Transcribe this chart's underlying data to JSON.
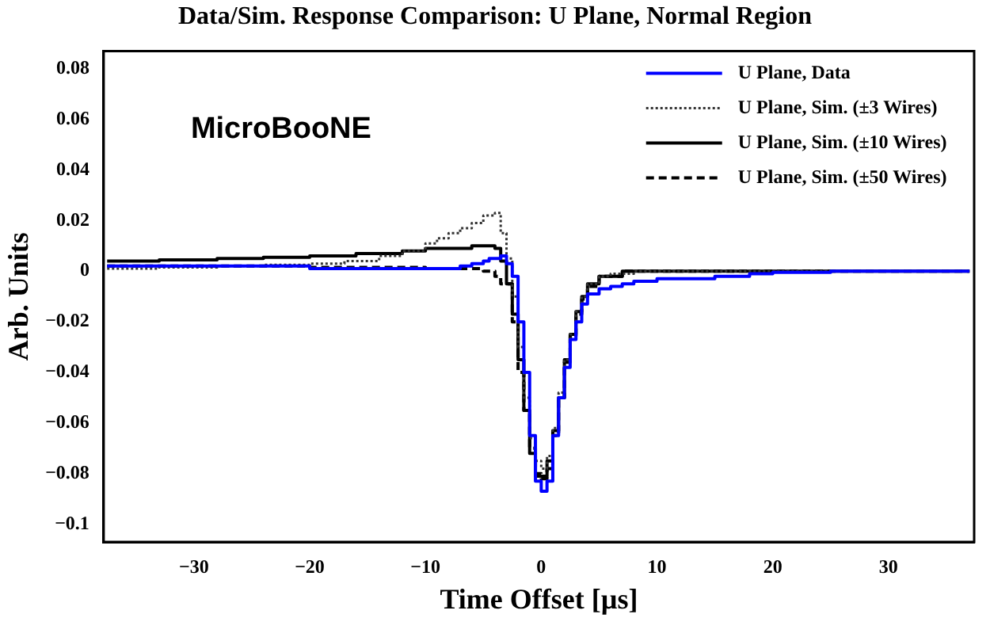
{
  "chart_data": {
    "type": "step",
    "title": "Data/Sim. Response Comparison:  U Plane, Normal Region",
    "xlabel": "Time Offset [µs]",
    "ylabel": "Arb. Units",
    "annotations": [
      "MicroBooNE"
    ],
    "xlim": [
      -37.8,
      37.4
    ],
    "xticks": [
      {
        "value": -30,
        "label": "−30"
      },
      {
        "value": -20,
        "label": "−20"
      },
      {
        "value": -10,
        "label": "−10"
      },
      0,
      10,
      20,
      30
    ],
    "ylim": [
      -0.107,
      0.087
    ],
    "yticks": [
      {
        "value": -0.1,
        "label": "−0.1"
      },
      {
        "value": -0.08,
        "label": "−0.08"
      },
      {
        "value": -0.06,
        "label": "−0.06"
      },
      {
        "value": -0.04,
        "label": "−0.04"
      },
      {
        "value": -0.02,
        "label": "−0.02"
      },
      0,
      0.02,
      0.04,
      0.06,
      0.08
    ],
    "grid": false,
    "legend": "top right",
    "marker": "none",
    "series": [
      {
        "name": "U Plane, Data",
        "color": "#0000ff",
        "line_style": "solid",
        "x": [
          -37.5,
          -30,
          -20,
          -10,
          -8,
          -7,
          -6,
          -5,
          -4.5,
          -3.5,
          -3,
          -2.5,
          -2,
          -1.5,
          -1,
          -0.5,
          0,
          0.5,
          1,
          1.5,
          2,
          2.5,
          3,
          3.5,
          4,
          5,
          6,
          7,
          8,
          10,
          12,
          15,
          18,
          20,
          25,
          30,
          37
        ],
        "values": [
          0.002,
          0.002,
          0.001,
          0.001,
          0.001,
          0.002,
          0.003,
          0.004,
          0.005,
          0.006,
          0.003,
          -0.002,
          -0.02,
          -0.04,
          -0.065,
          -0.083,
          -0.087,
          -0.083,
          -0.065,
          -0.05,
          -0.038,
          -0.027,
          -0.02,
          -0.013,
          -0.009,
          -0.007,
          -0.006,
          -0.005,
          -0.004,
          -0.003,
          -0.003,
          -0.002,
          -0.001,
          -0.0005,
          0,
          0,
          0
        ]
      },
      {
        "name": "U Plane, Sim. (±3 Wires)",
        "color": "#333333",
        "line_style": "dotted",
        "x": [
          -37.5,
          -33,
          -28,
          -24,
          -20,
          -17,
          -14,
          -12,
          -10,
          -9,
          -8,
          -7,
          -6,
          -5,
          -4,
          -3.5,
          -3,
          -2.5,
          -2,
          -1.5,
          -1,
          -0.5,
          0,
          0.5,
          1,
          1.5,
          2,
          2.5,
          3,
          3.5,
          4,
          5,
          6,
          8,
          37
        ],
        "values": [
          0.001,
          0.0015,
          0.002,
          0.0025,
          0.003,
          0.004,
          0.006,
          0.008,
          0.011,
          0.013,
          0.015,
          0.017,
          0.019,
          0.022,
          0.023,
          0.015,
          0.005,
          -0.01,
          -0.03,
          -0.05,
          -0.066,
          -0.075,
          -0.078,
          -0.073,
          -0.062,
          -0.048,
          -0.035,
          -0.025,
          -0.016,
          -0.01,
          -0.005,
          -0.002,
          -0.001,
          0,
          0
        ]
      },
      {
        "name": "U Plane, Sim. (±10 Wires)",
        "color": "#000000",
        "line_style": "solid",
        "x": [
          -37.5,
          -33,
          -28,
          -24,
          -20,
          -16,
          -12,
          -10,
          -6,
          -4,
          -3.5,
          -3,
          -2.5,
          -2,
          -1.5,
          -1,
          -0.5,
          0,
          0.5,
          1,
          1.5,
          2,
          2.5,
          3,
          3.5,
          4,
          5,
          7,
          37
        ],
        "values": [
          0.004,
          0.0045,
          0.005,
          0.0055,
          0.006,
          0.007,
          0.008,
          0.009,
          0.01,
          0.009,
          0.004,
          -0.005,
          -0.017,
          -0.035,
          -0.055,
          -0.072,
          -0.081,
          -0.081,
          -0.075,
          -0.063,
          -0.05,
          -0.035,
          -0.025,
          -0.016,
          -0.01,
          -0.005,
          -0.002,
          0,
          0
        ]
      },
      {
        "name": "U Plane, Sim. (±50 Wires)",
        "color": "#000000",
        "line_style": "dashed",
        "x": [
          -37.5,
          -20,
          -10,
          -6,
          -5,
          -4,
          -3.5,
          -2.5,
          -2,
          -1.5,
          -1,
          -0.5,
          0,
          0.5,
          1,
          1.5,
          2,
          2.5,
          3,
          3.5,
          4,
          5,
          7,
          37
        ],
        "values": [
          0.002,
          0.0015,
          0.001,
          0.001,
          0,
          -0.002,
          -0.005,
          -0.02,
          -0.04,
          -0.055,
          -0.07,
          -0.08,
          -0.082,
          -0.078,
          -0.065,
          -0.05,
          -0.036,
          -0.026,
          -0.017,
          -0.011,
          -0.006,
          -0.002,
          0,
          0
        ]
      }
    ]
  }
}
